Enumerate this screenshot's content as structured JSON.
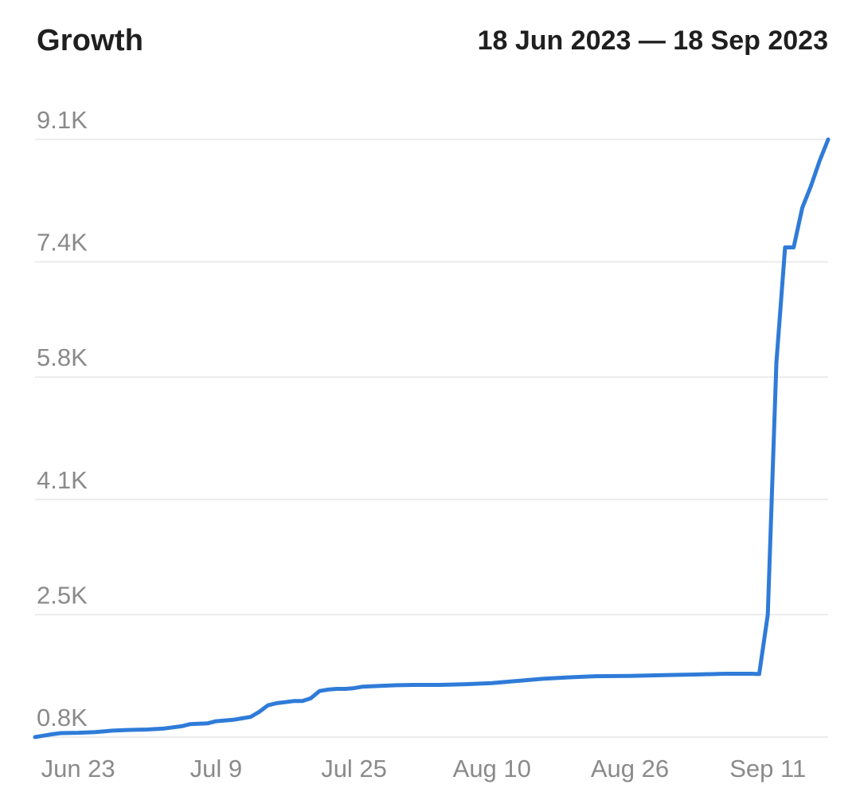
{
  "header": {
    "title": "Growth",
    "date_range": "18 Jun 2023 — 18 Sep 2023"
  },
  "colors": {
    "line": "#2f7bd8",
    "grid": "#e6e6e6",
    "tick_text": "#8a8a8a",
    "title_text": "#1f1f1f"
  },
  "chart_data": {
    "type": "line",
    "title": "Growth",
    "subtitle": "18 Jun 2023 — 18 Sep 2023",
    "xlabel": "",
    "ylabel": "",
    "grid": "horizontal",
    "legend": "none",
    "y_ticks": [
      {
        "value": 800,
        "label": "0.8K"
      },
      {
        "value": 2500,
        "label": "2.5K"
      },
      {
        "value": 4100,
        "label": "4.1K"
      },
      {
        "value": 5800,
        "label": "5.8K"
      },
      {
        "value": 7400,
        "label": "7.4K"
      },
      {
        "value": 9100,
        "label": "9.1K"
      }
    ],
    "x_ticks": [
      {
        "date": "2023-06-23",
        "label": "Jun 23"
      },
      {
        "date": "2023-07-09",
        "label": "Jul 9"
      },
      {
        "date": "2023-07-25",
        "label": "Jul 25"
      },
      {
        "date": "2023-08-10",
        "label": "Aug 10"
      },
      {
        "date": "2023-08-26",
        "label": "Aug 26"
      },
      {
        "date": "2023-09-11",
        "label": "Sep 11"
      }
    ],
    "xlim": [
      "2023-06-18",
      "2023-09-18"
    ],
    "ylim": [
      800,
      9100
    ],
    "series": [
      {
        "points": [
          [
            "2023-06-18",
            800
          ],
          [
            "2023-06-19",
            820
          ],
          [
            "2023-06-20",
            840
          ],
          [
            "2023-06-21",
            855
          ],
          [
            "2023-06-23",
            860
          ],
          [
            "2023-06-25",
            870
          ],
          [
            "2023-06-27",
            890
          ],
          [
            "2023-06-29",
            900
          ],
          [
            "2023-07-01",
            905
          ],
          [
            "2023-07-03",
            920
          ],
          [
            "2023-07-05",
            950
          ],
          [
            "2023-07-06",
            980
          ],
          [
            "2023-07-08",
            990
          ],
          [
            "2023-07-09",
            1020
          ],
          [
            "2023-07-11",
            1040
          ],
          [
            "2023-07-12",
            1060
          ],
          [
            "2023-07-13",
            1080
          ],
          [
            "2023-07-14",
            1150
          ],
          [
            "2023-07-15",
            1240
          ],
          [
            "2023-07-16",
            1270
          ],
          [
            "2023-07-18",
            1300
          ],
          [
            "2023-07-19",
            1300
          ],
          [
            "2023-07-20",
            1340
          ],
          [
            "2023-07-21",
            1440
          ],
          [
            "2023-07-22",
            1460
          ],
          [
            "2023-07-23",
            1470
          ],
          [
            "2023-07-24",
            1470
          ],
          [
            "2023-07-25",
            1480
          ],
          [
            "2023-07-26",
            1500
          ],
          [
            "2023-07-28",
            1510
          ],
          [
            "2023-07-30",
            1520
          ],
          [
            "2023-08-01",
            1525
          ],
          [
            "2023-08-04",
            1525
          ],
          [
            "2023-08-07",
            1535
          ],
          [
            "2023-08-10",
            1550
          ],
          [
            "2023-08-13",
            1580
          ],
          [
            "2023-08-16",
            1610
          ],
          [
            "2023-08-19",
            1630
          ],
          [
            "2023-08-22",
            1645
          ],
          [
            "2023-08-26",
            1650
          ],
          [
            "2023-08-30",
            1660
          ],
          [
            "2023-09-03",
            1670
          ],
          [
            "2023-09-06",
            1680
          ],
          [
            "2023-09-09",
            1680
          ],
          [
            "2023-09-10",
            1675
          ],
          [
            "2023-09-11",
            2500
          ],
          [
            "2023-09-12",
            6000
          ],
          [
            "2023-09-13",
            7600
          ],
          [
            "2023-09-14",
            7600
          ],
          [
            "2023-09-15",
            8150
          ],
          [
            "2023-09-16",
            8450
          ],
          [
            "2023-09-17",
            8800
          ],
          [
            "2023-09-18",
            9100
          ]
        ]
      }
    ]
  }
}
